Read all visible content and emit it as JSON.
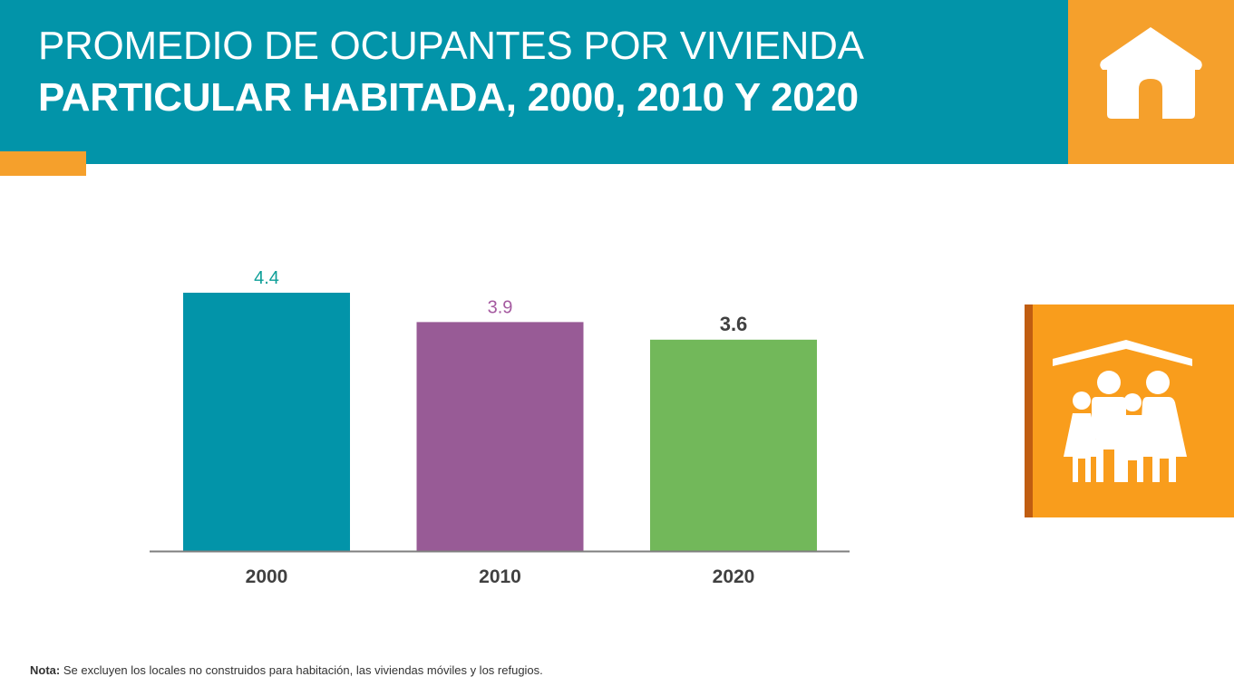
{
  "header": {
    "title_line1": "PROMEDIO DE OCUPANTES POR VIVIENDA",
    "title_line2": "PARTICULAR HABITADA, 2000, 2010 Y 2020",
    "background_color": "#0294a9",
    "accent_color": "#f5a02c",
    "icon": "house-icon"
  },
  "side_panel": {
    "icon": "family-under-roof-icon",
    "background_color": "#f99d1c"
  },
  "chart_data": {
    "type": "bar",
    "title": "PROMEDIO DE OCUPANTES POR VIVIENDA PARTICULAR HABITADA, 2000, 2010 Y 2020",
    "categories": [
      "2000",
      "2010",
      "2020"
    ],
    "values": [
      4.4,
      3.9,
      3.6
    ],
    "value_labels": [
      "4.4",
      "3.9",
      "3.6"
    ],
    "colors": [
      "#0294a9",
      "#985b96",
      "#72b85a"
    ],
    "label_colors": [
      "#0d9f98",
      "#a55aa0",
      "#404040"
    ],
    "xlabel": "",
    "ylabel": "",
    "ylim": [
      0,
      4.4
    ],
    "grid": false,
    "legend": "none"
  },
  "note": {
    "label": "Nota:",
    "text": " Se excluyen los locales no construidos para habitación, las viviendas móviles y los refugios."
  }
}
